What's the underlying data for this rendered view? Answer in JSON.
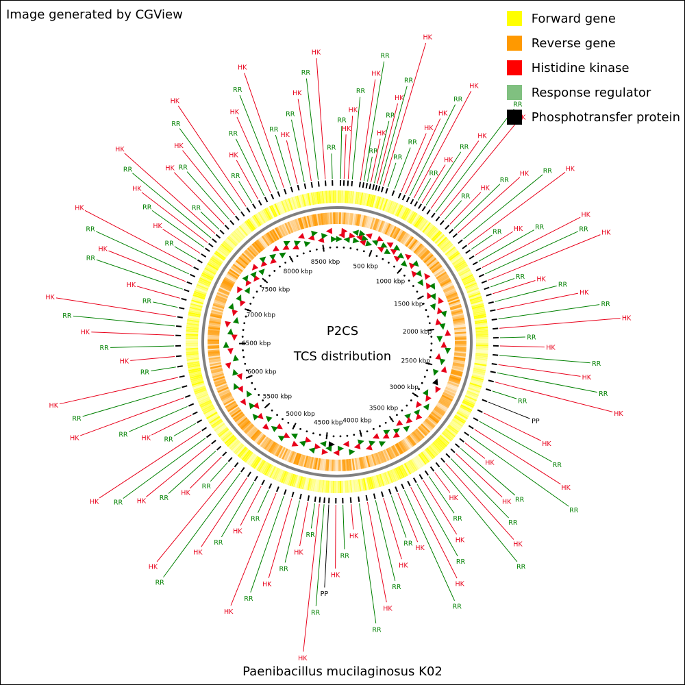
{
  "credit": "Image generated by CGView",
  "species": "Paenibacillus mucilaginosus K02",
  "center": {
    "line1": "P2CS",
    "line2": "TCS distribution"
  },
  "legend": [
    {
      "label": "Forward gene",
      "color": "#ffff00"
    },
    {
      "label": "Reverse gene",
      "color": "#ff9900"
    },
    {
      "label": "Histidine kinase",
      "color": "#ff0000"
    },
    {
      "label": "Response regulator",
      "color": "#80c080"
    },
    {
      "label": "Phosphotransfer protein",
      "color": "#000000"
    }
  ],
  "colors": {
    "hk": "#e8001a",
    "rr": "#008000",
    "pp": "#000000",
    "forward": "#ffff00",
    "reverse": "#ff9900",
    "backbone": "#808080"
  },
  "genome": {
    "length_kbp": 8700,
    "tick_labels": [
      "500 kbp",
      "1000 kbp",
      "1500 kbp",
      "2000 kbp",
      "2500 kbp",
      "3000 kbp",
      "3500 kbp",
      "4000 kbp",
      "4500 kbp",
      "5000 kbp",
      "5500 kbp",
      "6000 kbp",
      "6500 kbp",
      "7000 kbp",
      "7500 kbp",
      "8000 kbp",
      "8500 kbp"
    ]
  },
  "features": [
    {
      "kbp": 30,
      "label": "RR"
    },
    {
      "kbp": 60,
      "label": "HK"
    },
    {
      "kbp": 95,
      "label": "HK"
    },
    {
      "kbp": 130,
      "label": "RR"
    },
    {
      "kbp": 200,
      "label": "HK"
    },
    {
      "kbp": 230,
      "label": "RR"
    },
    {
      "kbp": 260,
      "label": "RR"
    },
    {
      "kbp": 290,
      "label": "HK"
    },
    {
      "kbp": 320,
      "label": "RR"
    },
    {
      "kbp": 345,
      "label": "HK"
    },
    {
      "kbp": 370,
      "label": "RR"
    },
    {
      "kbp": 400,
      "label": "HK"
    },
    {
      "kbp": 440,
      "label": "RR"
    },
    {
      "kbp": 500,
      "label": "RR"
    },
    {
      "kbp": 560,
      "label": "HK"
    },
    {
      "kbp": 600,
      "label": "HK"
    },
    {
      "kbp": 640,
      "label": "RR"
    },
    {
      "kbp": 680,
      "label": "HK"
    },
    {
      "kbp": 720,
      "label": "RR"
    },
    {
      "kbp": 760,
      "label": "HK"
    },
    {
      "kbp": 800,
      "label": "RR"
    },
    {
      "kbp": 850,
      "label": "HK"
    },
    {
      "kbp": 900,
      "label": "RR"
    },
    {
      "kbp": 950,
      "label": "HK"
    },
    {
      "kbp": 1000,
      "label": "RR"
    },
    {
      "kbp": 1060,
      "label": "HK"
    },
    {
      "kbp": 1110,
      "label": "RR"
    },
    {
      "kbp": 1160,
      "label": "HK"
    },
    {
      "kbp": 1230,
      "label": "RR"
    },
    {
      "kbp": 1290,
      "label": "HK"
    },
    {
      "kbp": 1340,
      "label": "RR"
    },
    {
      "kbp": 1400,
      "label": "HK"
    },
    {
      "kbp": 1460,
      "label": "RR"
    },
    {
      "kbp": 1520,
      "label": "HK"
    },
    {
      "kbp": 1580,
      "label": "RR"
    },
    {
      "kbp": 1640,
      "label": "HK"
    },
    {
      "kbp": 1700,
      "label": "RR"
    },
    {
      "kbp": 1760,
      "label": "HK"
    },
    {
      "kbp": 1830,
      "label": "RR"
    },
    {
      "kbp": 1900,
      "label": "HK"
    },
    {
      "kbp": 1980,
      "label": "RR"
    },
    {
      "kbp": 2060,
      "label": "HK"
    },
    {
      "kbp": 2140,
      "label": "RR"
    },
    {
      "kbp": 2210,
      "label": "HK"
    },
    {
      "kbp": 2290,
      "label": "RR"
    },
    {
      "kbp": 2370,
      "label": "HK"
    },
    {
      "kbp": 2440,
      "label": "RR"
    },
    {
      "kbp": 2520,
      "label": "HK"
    },
    {
      "kbp": 2600,
      "label": "RR"
    },
    {
      "kbp": 2700,
      "label": "PP"
    },
    {
      "kbp": 2800,
      "label": "HK"
    },
    {
      "kbp": 2880,
      "label": "RR"
    },
    {
      "kbp": 2960,
      "label": "HK"
    },
    {
      "kbp": 3030,
      "label": "RR"
    },
    {
      "kbp": 3100,
      "label": "HK"
    },
    {
      "kbp": 3160,
      "label": "RR"
    },
    {
      "kbp": 3220,
      "label": "HK"
    },
    {
      "kbp": 3280,
      "label": "RR"
    },
    {
      "kbp": 3340,
      "label": "HK"
    },
    {
      "kbp": 3400,
      "label": "RR"
    },
    {
      "kbp": 3460,
      "label": "HK"
    },
    {
      "kbp": 3520,
      "label": "RR"
    },
    {
      "kbp": 3580,
      "label": "HK"
    },
    {
      "kbp": 3640,
      "label": "RR"
    },
    {
      "kbp": 3700,
      "label": "HK"
    },
    {
      "kbp": 3760,
      "label": "RR"
    },
    {
      "kbp": 3820,
      "label": "HK"
    },
    {
      "kbp": 3880,
      "label": "RR"
    },
    {
      "kbp": 3950,
      "label": "HK"
    },
    {
      "kbp": 4020,
      "label": "RR"
    },
    {
      "kbp": 4090,
      "label": "HK"
    },
    {
      "kbp": 4160,
      "label": "RR"
    },
    {
      "kbp": 4230,
      "label": "HK"
    },
    {
      "kbp": 4300,
      "label": "RR"
    },
    {
      "kbp": 4360,
      "label": "HK"
    },
    {
      "kbp": 4420,
      "label": "PP"
    },
    {
      "kbp": 4460,
      "label": "RR"
    },
    {
      "kbp": 4500,
      "label": "HK"
    },
    {
      "kbp": 4540,
      "label": "RR"
    },
    {
      "kbp": 4600,
      "label": "HK"
    },
    {
      "kbp": 4670,
      "label": "RR"
    },
    {
      "kbp": 4740,
      "label": "HK"
    },
    {
      "kbp": 4810,
      "label": "RR"
    },
    {
      "kbp": 4880,
      "label": "HK"
    },
    {
      "kbp": 4950,
      "label": "RR"
    },
    {
      "kbp": 5020,
      "label": "HK"
    },
    {
      "kbp": 5090,
      "label": "RR"
    },
    {
      "kbp": 5160,
      "label": "HK"
    },
    {
      "kbp": 5230,
      "label": "RR"
    },
    {
      "kbp": 5300,
      "label": "HK"
    },
    {
      "kbp": 5370,
      "label": "RR"
    },
    {
      "kbp": 5440,
      "label": "HK"
    },
    {
      "kbp": 5510,
      "label": "RR"
    },
    {
      "kbp": 5580,
      "label": "HK"
    },
    {
      "kbp": 5650,
      "label": "RR"
    },
    {
      "kbp": 5720,
      "label": "HK"
    },
    {
      "kbp": 5800,
      "label": "RR"
    },
    {
      "kbp": 5880,
      "label": "HK"
    },
    {
      "kbp": 5960,
      "label": "RR"
    },
    {
      "kbp": 6040,
      "label": "HK"
    },
    {
      "kbp": 6130,
      "label": "RR"
    },
    {
      "kbp": 6220,
      "label": "HK"
    },
    {
      "kbp": 6310,
      "label": "RR"
    },
    {
      "kbp": 6400,
      "label": "HK"
    },
    {
      "kbp": 6490,
      "label": "RR"
    },
    {
      "kbp": 6580,
      "label": "HK"
    },
    {
      "kbp": 6660,
      "label": "RR"
    },
    {
      "kbp": 6740,
      "label": "HK"
    },
    {
      "kbp": 6820,
      "label": "RR"
    },
    {
      "kbp": 6900,
      "label": "HK"
    },
    {
      "kbp": 6980,
      "label": "RR"
    },
    {
      "kbp": 7050,
      "label": "HK"
    },
    {
      "kbp": 7120,
      "label": "RR"
    },
    {
      "kbp": 7190,
      "label": "HK"
    },
    {
      "kbp": 7260,
      "label": "RR"
    },
    {
      "kbp": 7320,
      "label": "HK"
    },
    {
      "kbp": 7380,
      "label": "RR"
    },
    {
      "kbp": 7430,
      "label": "HK"
    },
    {
      "kbp": 7480,
      "label": "RR"
    },
    {
      "kbp": 7530,
      "label": "HK"
    },
    {
      "kbp": 7580,
      "label": "RR"
    },
    {
      "kbp": 7640,
      "label": "HK"
    },
    {
      "kbp": 7700,
      "label": "RR"
    },
    {
      "kbp": 7760,
      "label": "HK"
    },
    {
      "kbp": 7820,
      "label": "RR"
    },
    {
      "kbp": 7880,
      "label": "HK"
    },
    {
      "kbp": 7940,
      "label": "RR"
    },
    {
      "kbp": 8000,
      "label": "HK"
    },
    {
      "kbp": 8060,
      "label": "RR"
    },
    {
      "kbp": 8120,
      "label": "HK"
    },
    {
      "kbp": 8180,
      "label": "RR"
    },
    {
      "kbp": 8240,
      "label": "HK"
    },
    {
      "kbp": 8300,
      "label": "RR"
    },
    {
      "kbp": 8360,
      "label": "HK"
    },
    {
      "kbp": 8420,
      "label": "RR"
    },
    {
      "kbp": 8480,
      "label": "HK"
    },
    {
      "kbp": 8540,
      "label": "RR"
    },
    {
      "kbp": 8600,
      "label": "HK"
    },
    {
      "kbp": 8660,
      "label": "RR"
    }
  ]
}
